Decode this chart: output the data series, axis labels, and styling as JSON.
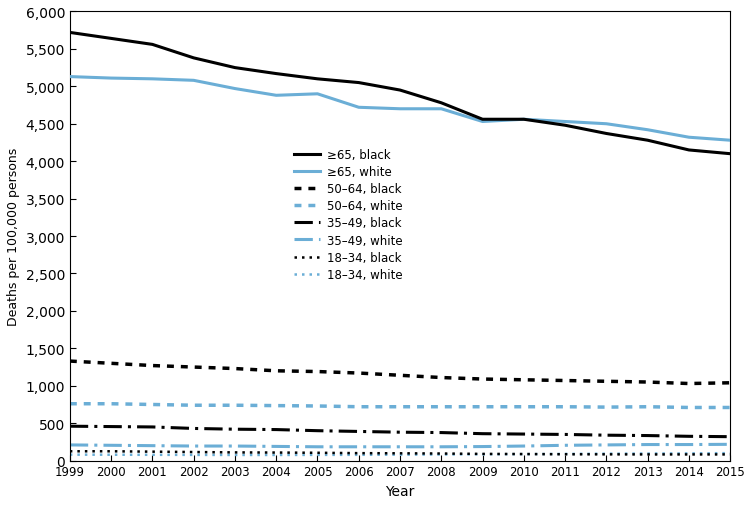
{
  "years": [
    1999,
    2000,
    2001,
    2002,
    2003,
    2004,
    2005,
    2006,
    2007,
    2008,
    2009,
    2010,
    2011,
    2012,
    2013,
    2014,
    2015
  ],
  "ge65_black": [
    5720,
    5640,
    5560,
    5380,
    5250,
    5170,
    5100,
    5050,
    4950,
    4780,
    4560,
    4560,
    4480,
    4370,
    4280,
    4150,
    4100
  ],
  "ge65_white": [
    5130,
    5110,
    5100,
    5080,
    4970,
    4880,
    4900,
    4720,
    4700,
    4700,
    4530,
    4560,
    4530,
    4500,
    4420,
    4320,
    4280
  ],
  "age5064_black": [
    1330,
    1300,
    1270,
    1250,
    1230,
    1200,
    1190,
    1170,
    1140,
    1110,
    1090,
    1080,
    1070,
    1060,
    1050,
    1030,
    1040
  ],
  "age5064_white": [
    760,
    760,
    750,
    740,
    740,
    735,
    730,
    720,
    720,
    720,
    720,
    720,
    720,
    715,
    720,
    710,
    710
  ],
  "age3549_black": [
    460,
    455,
    450,
    430,
    420,
    415,
    400,
    390,
    380,
    375,
    360,
    355,
    350,
    340,
    335,
    325,
    320
  ],
  "age3549_white": [
    210,
    205,
    200,
    195,
    195,
    190,
    185,
    185,
    185,
    185,
    188,
    195,
    205,
    210,
    215,
    215,
    218
  ],
  "age1834_black": [
    125,
    125,
    120,
    115,
    110,
    108,
    105,
    100,
    98,
    95,
    90,
    88,
    85,
    84,
    83,
    83,
    83
  ],
  "age1834_white": [
    80,
    79,
    78,
    77,
    76,
    76,
    77,
    78,
    80,
    82,
    85,
    87,
    90,
    93,
    95,
    97,
    100
  ],
  "black_color": "#000000",
  "white_color": "#6baed6",
  "ylabel": "Deaths per 100,000 persons",
  "xlabel": "Year",
  "ylim": [
    0,
    6000
  ],
  "yticks": [
    0,
    500,
    1000,
    1500,
    2000,
    2500,
    3000,
    3500,
    4000,
    4500,
    5000,
    5500,
    6000
  ],
  "legend_labels": [
    "≥65, black",
    "≥65, white",
    "50–64, black",
    "50–64, white",
    "35–49, black",
    "35–49, white",
    "18–34, black",
    "18–34, white"
  ]
}
